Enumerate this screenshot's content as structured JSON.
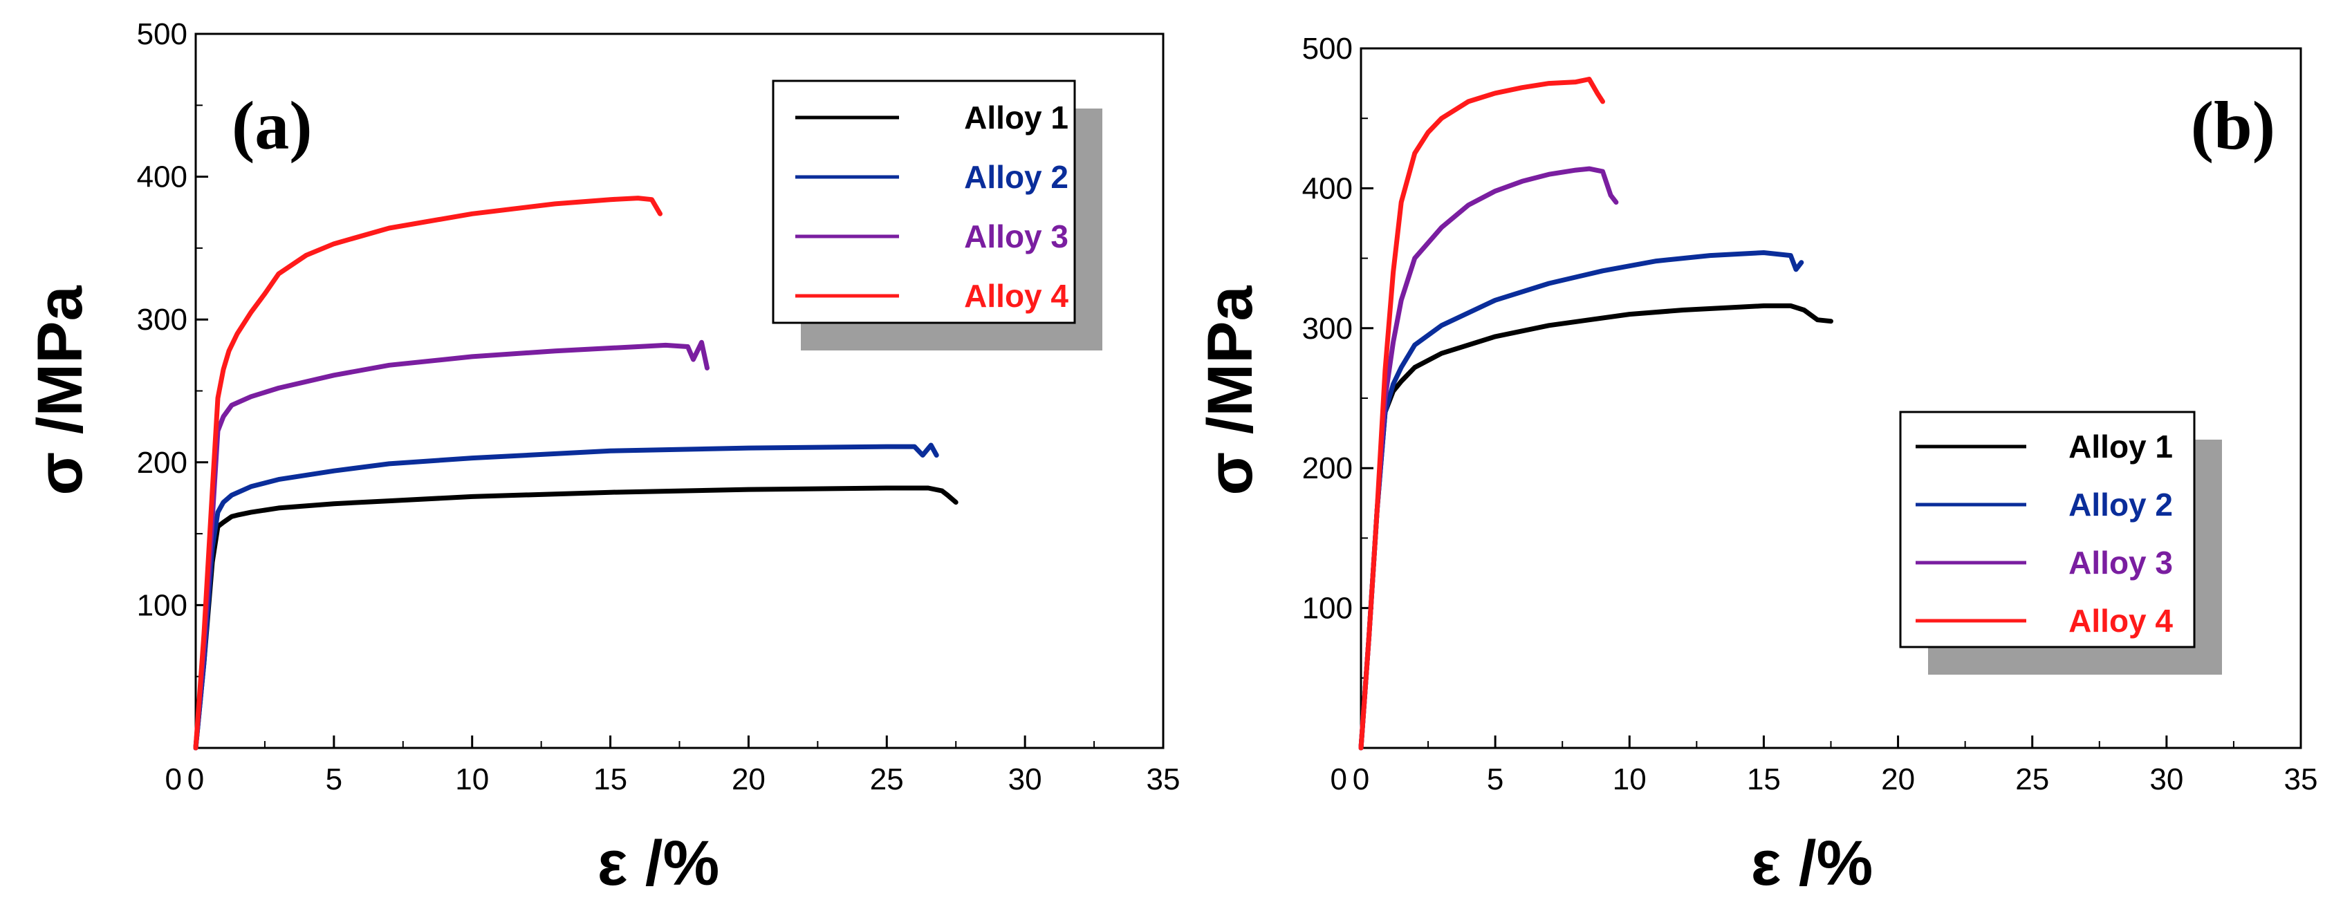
{
  "chart_data": [
    {
      "type": "line",
      "panel_label": "(a)",
      "xlabel": "ε /%",
      "ylabel": "σ /MPa",
      "xlim": [
        0,
        35
      ],
      "ylim": [
        0,
        500
      ],
      "xticks": [
        0,
        5,
        10,
        15,
        20,
        25,
        30,
        35
      ],
      "yticks": [
        100,
        200,
        300,
        400,
        500
      ],
      "legend_position": "top-right",
      "series": [
        {
          "name": "Alloy 1",
          "color": "#000000",
          "x": [
            0,
            0.3,
            0.6,
            0.8,
            1.0,
            1.3,
            1.5,
            2,
            3,
            5,
            7,
            10,
            15,
            20,
            25,
            26.5,
            27,
            27.2,
            27.5
          ],
          "y": [
            0,
            60,
            130,
            155,
            158,
            162,
            163,
            165,
            168,
            171,
            173,
            176,
            179,
            181,
            182,
            182,
            180,
            177,
            172
          ]
        },
        {
          "name": "Alloy 2",
          "color": "#0a2d9a",
          "x": [
            0,
            0.3,
            0.6,
            0.8,
            1.0,
            1.3,
            2,
            3,
            5,
            7,
            10,
            15,
            20,
            25,
            26,
            26.3,
            26.6,
            26.8
          ],
          "y": [
            0,
            60,
            140,
            165,
            172,
            177,
            183,
            188,
            194,
            199,
            203,
            208,
            210,
            211,
            211,
            205,
            212,
            205
          ]
        },
        {
          "name": "Alloy 3",
          "color": "#7a1ea0",
          "x": [
            0,
            0.3,
            0.6,
            0.8,
            1.0,
            1.3,
            2,
            3,
            5,
            7,
            10,
            13,
            16,
            17,
            17.8,
            18,
            18.3,
            18.5
          ],
          "y": [
            0,
            70,
            160,
            222,
            232,
            240,
            246,
            252,
            261,
            268,
            274,
            278,
            281,
            282,
            281,
            272,
            284,
            266
          ]
        },
        {
          "name": "Alloy 4",
          "color": "#ff1a1a",
          "x": [
            0,
            0.3,
            0.6,
            0.8,
            1.0,
            1.2,
            1.5,
            2,
            2.5,
            3,
            4,
            5,
            7,
            10,
            13,
            15,
            16,
            16.5,
            16.8
          ],
          "y": [
            0,
            80,
            180,
            245,
            265,
            278,
            290,
            305,
            318,
            332,
            345,
            353,
            364,
            374,
            381,
            384,
            385,
            384,
            374
          ]
        }
      ]
    },
    {
      "type": "line",
      "panel_label": "(b)",
      "xlabel": "ε /%",
      "ylabel": "σ /MPa",
      "xlim": [
        0,
        35
      ],
      "ylim": [
        0,
        500
      ],
      "xticks": [
        0,
        5,
        10,
        15,
        20,
        25,
        30,
        35
      ],
      "yticks": [
        100,
        200,
        300,
        400,
        500
      ],
      "legend_position": "bottom-right",
      "series": [
        {
          "name": "Alloy 1",
          "color": "#000000",
          "x": [
            0,
            0.3,
            0.6,
            0.9,
            1.2,
            1.5,
            2,
            3,
            5,
            7,
            10,
            12,
            15,
            16,
            16.5,
            17,
            17.5
          ],
          "y": [
            0,
            80,
            170,
            240,
            255,
            262,
            272,
            282,
            294,
            302,
            310,
            313,
            316,
            316,
            313,
            306,
            305
          ]
        },
        {
          "name": "Alloy 2",
          "color": "#0a2d9a",
          "x": [
            0,
            0.3,
            0.6,
            0.9,
            1.2,
            1.5,
            2,
            3,
            5,
            7,
            9,
            11,
            13,
            15,
            16,
            16.2,
            16.4
          ],
          "y": [
            0,
            80,
            170,
            240,
            260,
            272,
            288,
            302,
            320,
            332,
            341,
            348,
            352,
            354,
            352,
            342,
            347
          ]
        },
        {
          "name": "Alloy 3",
          "color": "#7a1ea0",
          "x": [
            0,
            0.3,
            0.6,
            0.9,
            1.2,
            1.5,
            2,
            3,
            4,
            5,
            6,
            7,
            8,
            8.5,
            9,
            9.3,
            9.5
          ],
          "y": [
            0,
            80,
            170,
            250,
            290,
            320,
            350,
            372,
            388,
            398,
            405,
            410,
            413,
            414,
            412,
            395,
            390
          ]
        },
        {
          "name": "Alloy 4",
          "color": "#ff1a1a",
          "x": [
            0,
            0.3,
            0.6,
            0.9,
            1.2,
            1.5,
            2,
            2.5,
            3,
            4,
            5,
            6,
            7,
            8,
            8.5,
            8.8,
            9
          ],
          "y": [
            0,
            80,
            170,
            270,
            340,
            390,
            425,
            440,
            450,
            462,
            468,
            472,
            475,
            476,
            478,
            468,
            462
          ]
        }
      ]
    }
  ]
}
